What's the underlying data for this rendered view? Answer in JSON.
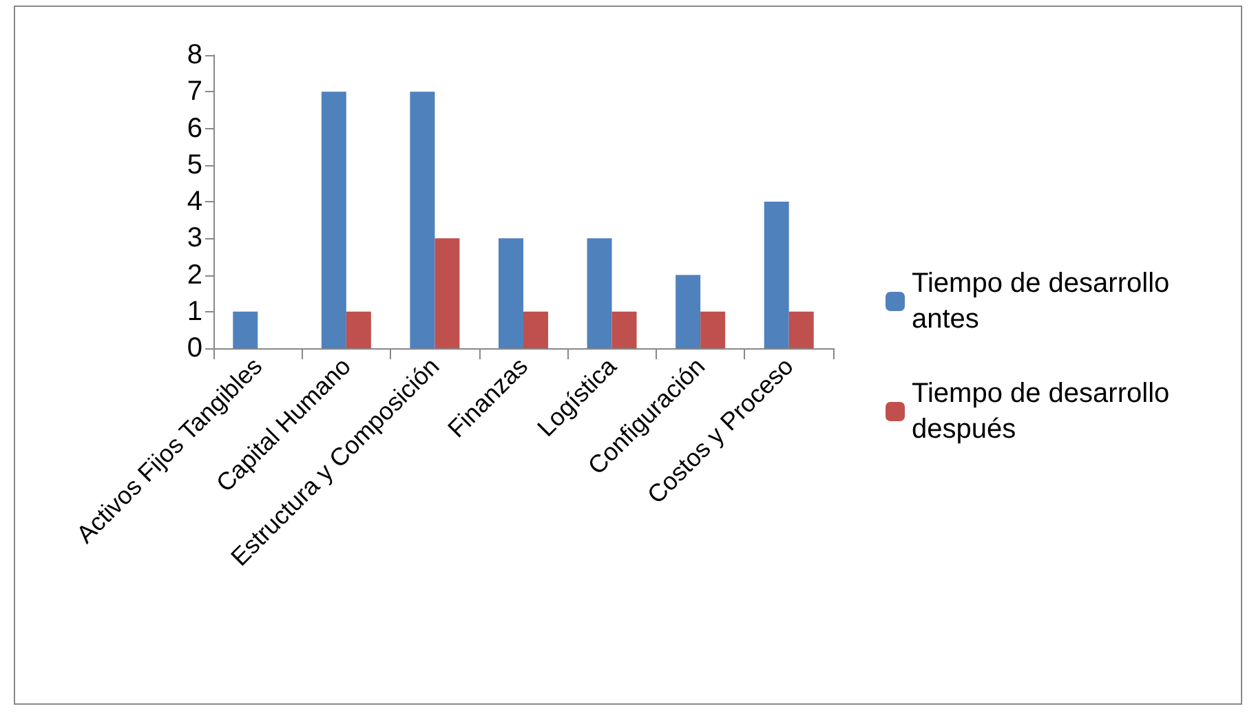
{
  "chart_data": {
    "type": "bar",
    "categories": [
      "Activos Fijos Tangibles",
      "Capital Humano",
      "Estructura y Composición",
      "Finanzas",
      "Logística",
      "Configuración",
      "Costos y Proceso"
    ],
    "series": [
      {
        "name": "Tiempo de desarrollo antes",
        "color": "#4f81bd",
        "values": [
          1,
          7,
          7,
          3,
          3,
          2,
          4
        ]
      },
      {
        "name": "Tiempo de desarrollo después",
        "color": "#c0504d",
        "values": [
          0,
          1,
          3,
          1,
          1,
          1,
          1
        ]
      }
    ],
    "ylim": [
      0,
      8
    ],
    "yticks": [
      0,
      1,
      2,
      3,
      4,
      5,
      6,
      7,
      8
    ],
    "grid": false,
    "legend": "right"
  }
}
